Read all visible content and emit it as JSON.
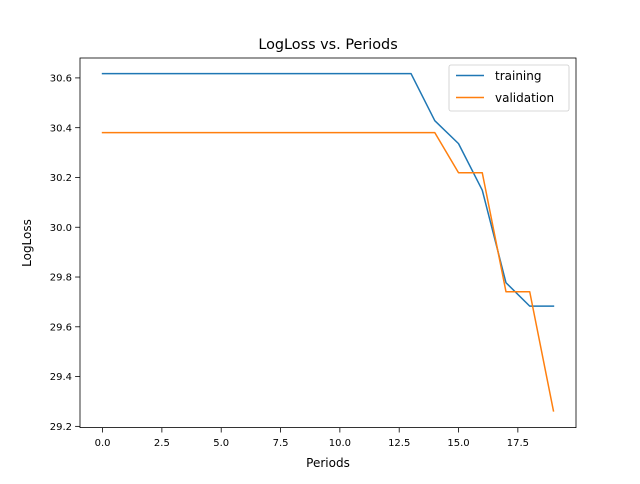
{
  "chart_data": {
    "type": "line",
    "title": "LogLoss vs. Periods",
    "xlabel": "Periods",
    "ylabel": "LogLoss",
    "xlim": [
      -0.95,
      19.95
    ],
    "ylim": [
      29.195,
      30.68
    ],
    "xticks": [
      0.0,
      2.5,
      5.0,
      7.5,
      10.0,
      12.5,
      15.0,
      17.5
    ],
    "xtick_labels": [
      "0.0",
      "2.5",
      "5.0",
      "7.5",
      "10.0",
      "12.5",
      "15.0",
      "17.5"
    ],
    "yticks": [
      29.2,
      29.4,
      29.6,
      29.8,
      30.0,
      30.2,
      30.4,
      30.6
    ],
    "ytick_labels": [
      "29.2",
      "29.4",
      "29.6",
      "29.8",
      "30.0",
      "30.2",
      "30.4",
      "30.6"
    ],
    "grid": false,
    "legend_position": "top-right",
    "x": [
      0,
      1,
      2,
      3,
      4,
      5,
      6,
      7,
      8,
      9,
      10,
      11,
      12,
      13,
      14,
      15,
      16,
      17,
      18,
      19
    ],
    "series": [
      {
        "name": "training",
        "color": "#1f77b4",
        "values": [
          30.617,
          30.617,
          30.617,
          30.617,
          30.617,
          30.617,
          30.617,
          30.617,
          30.617,
          30.617,
          30.617,
          30.617,
          30.617,
          30.617,
          30.428,
          30.336,
          30.149,
          29.777,
          29.683,
          29.683
        ]
      },
      {
        "name": "validation",
        "color": "#ff7f0e",
        "values": [
          30.38,
          30.38,
          30.38,
          30.38,
          30.38,
          30.38,
          30.38,
          30.38,
          30.38,
          30.38,
          30.38,
          30.38,
          30.38,
          30.38,
          30.38,
          30.219,
          30.219,
          29.741,
          29.741,
          29.262
        ]
      }
    ]
  }
}
